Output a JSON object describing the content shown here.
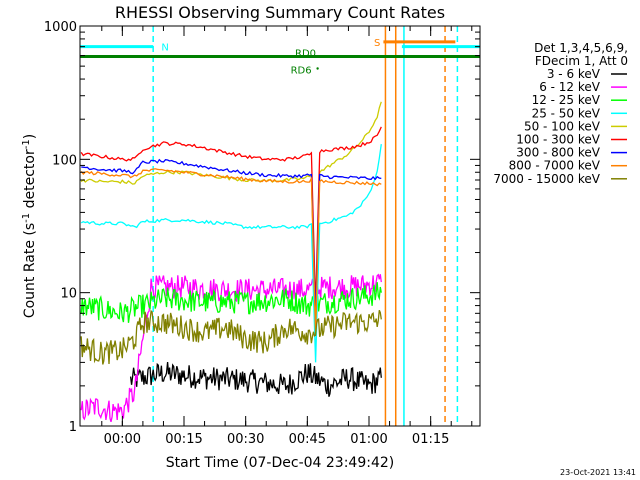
{
  "chart_data": {
    "type": "line",
    "title": "RHESSI Observing Summary Count Rates",
    "xlabel": "Start Time (07-Dec-04 23:49:42)",
    "ylabel": "Count Rate (s",
    "ylabel_sup1": "-1",
    "ylabel_mid": " detector",
    "ylabel_sup2": "-1",
    "ylabel_end": ")",
    "y_scale": "log",
    "ylim": [
      1,
      1000
    ],
    "xlim_minutes": [
      -10.3,
      87
    ],
    "x_ticks": [
      {
        "label": "00:00",
        "minutes": 0
      },
      {
        "label": "00:15",
        "minutes": 15
      },
      {
        "label": "00:30",
        "minutes": 30
      },
      {
        "label": "00:45",
        "minutes": 45
      },
      {
        "label": "01:00",
        "minutes": 60
      },
      {
        "label": "01:15",
        "minutes": 75
      }
    ],
    "y_ticks": [
      {
        "label": "1",
        "value": 1
      },
      {
        "label": "10",
        "value": 10
      },
      {
        "label": "100",
        "value": 100
      },
      {
        "label": "1000",
        "value": 1000
      }
    ],
    "legend_header": [
      "Det 1,3,4,5,6,9,",
      "FDecim 1, Att 0"
    ],
    "legend_placement": "right",
    "timestamp": "23-Oct-2021 13:41",
    "flags": [
      {
        "label": "N",
        "color": "#00ffff",
        "start": -10.3,
        "end": 7.5,
        "level": 700
      },
      {
        "label": "RD0",
        "color": "#008000",
        "start": -10.3,
        "end": 87,
        "level": 590
      },
      {
        "label": "RD6",
        "color": "#008000",
        "start": 47.5,
        "end": 47.5,
        "level": 480
      },
      {
        "label": "S",
        "color": "#ff8000",
        "start": 63.5,
        "end": 81,
        "level": 760
      },
      {
        "label": "",
        "color": "#00ffff",
        "start": 68,
        "end": 87,
        "level": 700
      }
    ],
    "markers": [
      {
        "minutes": 7.5,
        "color": "#00ffff",
        "style": "dashed"
      },
      {
        "minutes": 66.5,
        "color": "#ff8000",
        "style": "solid"
      },
      {
        "minutes": 64,
        "color": "#ff8000",
        "style": "solid"
      },
      {
        "minutes": 68.5,
        "color": "#00ffff",
        "style": "solid"
      },
      {
        "minutes": 78.5,
        "color": "#ff8000",
        "style": "dashed"
      },
      {
        "minutes": 81.5,
        "color": "#00ffff",
        "style": "dashed"
      }
    ],
    "series": [
      {
        "name": "3 - 6 keV",
        "color": "#000000",
        "style": "noisy",
        "x": [
          2,
          10,
          20,
          30,
          40,
          45,
          50,
          55,
          60,
          63
        ],
        "y": [
          2.2,
          2.5,
          2.3,
          2.2,
          2.0,
          2.5,
          2.0,
          2.3,
          2.0,
          2.3
        ]
      },
      {
        "name": "6 - 12 keV",
        "color": "#ff00ff",
        "style": "noisy",
        "x": [
          -10,
          -6,
          -3,
          0,
          3,
          7,
          15,
          25,
          35,
          45,
          50,
          55,
          60,
          63
        ],
        "y": [
          1.3,
          1.4,
          1.3,
          1.3,
          1.8,
          11,
          11,
          10.5,
          10.5,
          10.5,
          11,
          11,
          11.5,
          12
        ]
      },
      {
        "name": "12 - 25 keV",
        "color": "#00ff00",
        "style": "noisy",
        "x": [
          -10,
          -5,
          0,
          5,
          10,
          20,
          30,
          40,
          45,
          50,
          55,
          60,
          63
        ],
        "y": [
          8,
          7.5,
          7,
          8,
          9,
          8.5,
          8.5,
          9,
          8,
          8.5,
          9,
          9.5,
          10
        ]
      },
      {
        "name": "25 - 50 keV",
        "color": "#00ffff",
        "style": "line",
        "x": [
          -10,
          -5,
          0,
          3,
          5,
          10,
          15,
          20,
          25,
          30,
          35,
          40,
          44,
          46,
          47,
          48,
          50,
          55,
          58,
          60,
          62,
          63
        ],
        "y": [
          34,
          33,
          33,
          31,
          34,
          35,
          35,
          34,
          33,
          31,
          31,
          31,
          31,
          32,
          3,
          33,
          34,
          38,
          45,
          55,
          80,
          130
        ]
      },
      {
        "name": "50 - 100 keV",
        "color": "#cccc00",
        "style": "line",
        "x": [
          -10,
          -5,
          0,
          3,
          5,
          10,
          15,
          20,
          25,
          30,
          35,
          40,
          44,
          46,
          47,
          48,
          50,
          55,
          58,
          60,
          62,
          63
        ],
        "y": [
          70,
          68,
          68,
          66,
          75,
          80,
          80,
          76,
          73,
          70,
          69,
          70,
          72,
          75,
          5,
          80,
          88,
          110,
          135,
          160,
          210,
          270
        ]
      },
      {
        "name": "100 - 300 keV",
        "color": "#ff0000",
        "style": "line",
        "x": [
          -10,
          -5,
          0,
          3,
          5,
          10,
          15,
          20,
          25,
          30,
          35,
          40,
          44,
          46,
          47,
          48,
          50,
          55,
          58,
          60,
          62,
          63
        ],
        "y": [
          110,
          105,
          100,
          100,
          120,
          132,
          130,
          122,
          113,
          105,
          100,
          100,
          105,
          110,
          8,
          115,
          118,
          122,
          128,
          135,
          150,
          175
        ]
      },
      {
        "name": "300 - 800 keV",
        "color": "#0000ff",
        "style": "line",
        "x": [
          -10,
          -5,
          0,
          3,
          5,
          10,
          15,
          20,
          25,
          30,
          35,
          40,
          44,
          46,
          47,
          48,
          50,
          55,
          60,
          63
        ],
        "y": [
          88,
          84,
          82,
          80,
          95,
          97,
          93,
          88,
          83,
          79,
          76,
          75,
          75,
          77,
          6,
          76,
          74,
          73,
          72,
          72
        ]
      },
      {
        "name": "800 - 7000 keV",
        "color": "#ff8000",
        "style": "line",
        "x": [
          -10,
          -5,
          0,
          3,
          5,
          10,
          15,
          20,
          25,
          30,
          35,
          40,
          44,
          46,
          47,
          48,
          50,
          55,
          60,
          63
        ],
        "y": [
          80,
          78,
          76,
          74,
          82,
          83,
          80,
          77,
          74,
          71,
          69,
          68,
          68,
          70,
          5,
          69,
          68,
          67,
          66,
          65
        ]
      },
      {
        "name": "7000 - 15000 keV",
        "color": "#808000",
        "style": "noisy",
        "x": [
          -10,
          -5,
          0,
          3,
          5,
          10,
          15,
          20,
          25,
          30,
          35,
          40,
          45,
          50,
          55,
          60,
          63
        ],
        "y": [
          4,
          3.5,
          3.7,
          4.5,
          6,
          6,
          5.5,
          5,
          5.5,
          4.5,
          4.2,
          5.5,
          5,
          5.5,
          6,
          6,
          6.3
        ]
      }
    ]
  }
}
